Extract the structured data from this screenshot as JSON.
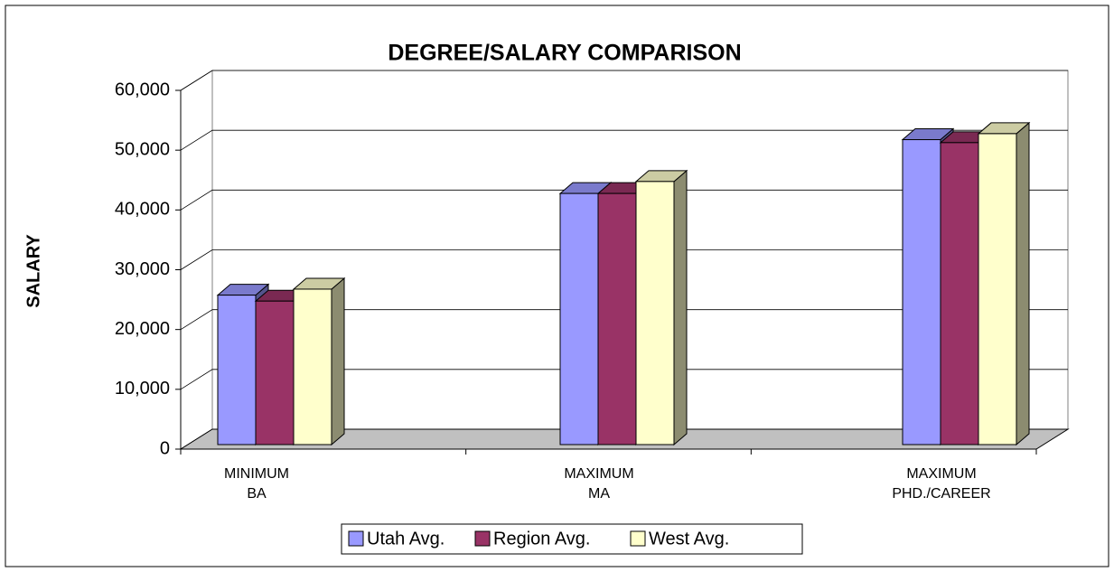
{
  "chart_data": {
    "type": "bar3d",
    "title": "DEGREE/SALARY COMPARISON",
    "y_label": "SALARY",
    "categories": [
      "MINIMUM\nBA",
      "MAXIMUM\nMA",
      "MAXIMUM\nPHD./CAREER"
    ],
    "series": [
      {
        "name": "Utah Avg.",
        "color": "#9999ff",
        "values": [
          25000,
          42000,
          51000
        ]
      },
      {
        "name": "Region Avg.",
        "color": "#993366",
        "values": [
          24000,
          42000,
          50500
        ]
      },
      {
        "name": "West Avg.",
        "color": "#ffffcc",
        "values": [
          26000,
          44000,
          52000
        ]
      }
    ],
    "ylim": [
      0,
      60000
    ],
    "yticks": [
      0,
      {
        "value": 10000,
        "label": "10,000"
      },
      {
        "value": 20000,
        "label": "20,000"
      },
      {
        "value": 30000,
        "label": "30,000"
      },
      {
        "value": 40000,
        "label": "40,000"
      },
      {
        "value": 50000,
        "label": "50,000"
      },
      {
        "value": 60000,
        "label": "60,000"
      }
    ],
    "grid": true
  }
}
